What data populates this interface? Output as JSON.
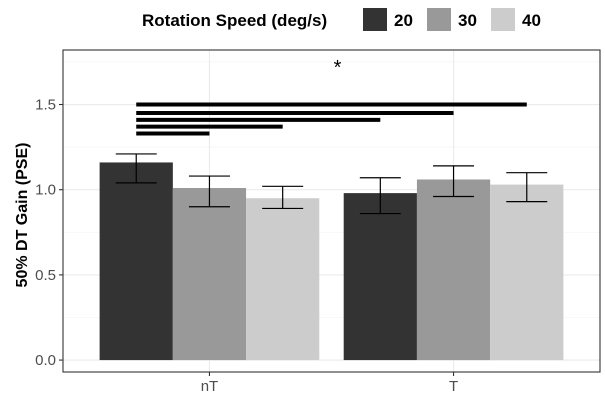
{
  "chart_data": {
    "type": "bar",
    "title": "",
    "xlabel": "",
    "ylabel": "50% DT Gain (PSE)",
    "categories": [
      "nT",
      "T"
    ],
    "legend": {
      "title": "Rotation Speed (deg/s)",
      "position": "top",
      "entries": [
        "20",
        "30",
        "40"
      ]
    },
    "series": [
      {
        "name": "20",
        "color": "#333333",
        "values": [
          1.16,
          0.98
        ],
        "error_low": [
          1.04,
          0.86
        ],
        "error_high": [
          1.21,
          1.07
        ]
      },
      {
        "name": "30",
        "color": "#999999",
        "values": [
          1.01,
          1.06
        ],
        "error_low": [
          0.9,
          0.96
        ],
        "error_high": [
          1.08,
          1.14
        ]
      },
      {
        "name": "40",
        "color": "#cccccc",
        "values": [
          0.95,
          1.03
        ],
        "error_low": [
          0.89,
          0.93
        ],
        "error_high": [
          1.02,
          1.1
        ]
      }
    ],
    "ylim": [
      -0.07,
      1.82
    ],
    "yticks": [
      "0.0",
      "0.5",
      "1.0",
      "1.5"
    ],
    "grid": true,
    "significance": {
      "annotation": "*",
      "bars": [
        {
          "from_group": 0,
          "from_series": 0,
          "to_group": 1,
          "to_series": 2,
          "y": 1.5
        },
        {
          "from_group": 0,
          "from_series": 0,
          "to_group": 1,
          "to_series": 1,
          "y": 1.45
        },
        {
          "from_group": 0,
          "from_series": 0,
          "to_group": 1,
          "to_series": 0,
          "y": 1.41
        },
        {
          "from_group": 0,
          "from_series": 0,
          "to_group": 0,
          "to_series": 2,
          "y": 1.37
        },
        {
          "from_group": 0,
          "from_series": 0,
          "to_group": 0,
          "to_series": 1,
          "y": 1.33
        }
      ]
    }
  }
}
